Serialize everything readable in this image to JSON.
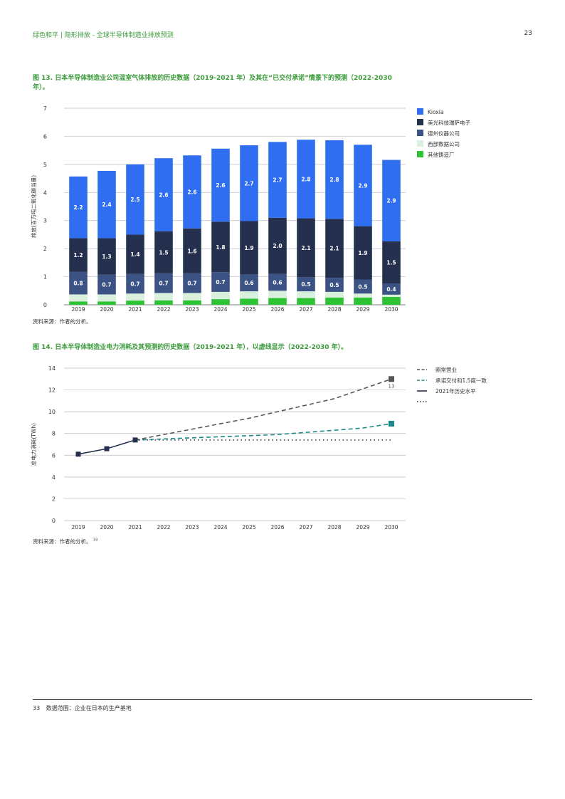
{
  "header": {
    "left": "绿色和平 | 隐形排放 - 全球半导体制造业排放预测",
    "page": "23"
  },
  "fig13": {
    "title": "图 13. 日本半导体制造业公司温室气体排放的历史数据（2019-2021 年）及其在“已交付承诺”情景下的预测（2022-2030 年）。",
    "source": "资料来源：作者的分析。"
  },
  "fig14": {
    "title": "图 14. 日本半导体制造业电力消耗及其预测的历史数据（2019-2021 年），以虚线显示（2022-2030 年）。",
    "source": "资料来源：作者的分析。",
    "source_sup": "33"
  },
  "footer": {
    "num": "33",
    "text": "数据范围：企业在日本的生产基地"
  },
  "chart_data": [
    {
      "type": "bar",
      "stacked": true,
      "ylabel": "排放(百万吨二氧化碳当量)",
      "ylim": [
        0,
        7
      ],
      "yticks": [
        0,
        1,
        2,
        3,
        4,
        5,
        6,
        7
      ],
      "categories": [
        "2019",
        "2020",
        "2021",
        "2022",
        "2023",
        "2024",
        "2025",
        "2026",
        "2027",
        "2028",
        "2029",
        "2030"
      ],
      "legend_position": "right",
      "series": [
        {
          "name": "其他铸造厂",
          "color": "#2ec235",
          "values": [
            0.12,
            0.12,
            0.15,
            0.16,
            0.16,
            0.2,
            0.22,
            0.24,
            0.24,
            0.26,
            0.26,
            0.28
          ]
        },
        {
          "name": "西部数据公司",
          "color": "#d8f0dc",
          "values": [
            0.25,
            0.25,
            0.25,
            0.26,
            0.26,
            0.26,
            0.26,
            0.26,
            0.24,
            0.2,
            0.14,
            0.08
          ]
        },
        {
          "name": "德州仪器公司",
          "color": "#3b5285",
          "values": [
            0.8,
            0.7,
            0.7,
            0.7,
            0.7,
            0.7,
            0.6,
            0.6,
            0.5,
            0.5,
            0.5,
            0.4
          ],
          "labels": [
            "0.8",
            "0.7",
            "0.7",
            "0.7",
            "0.7",
            "0.7",
            "0.6",
            "0.6",
            "0.5",
            "0.5",
            "0.5",
            "0.4"
          ]
        },
        {
          "name": "美光科技瑞萨电子",
          "color": "#25304f",
          "values": [
            1.2,
            1.3,
            1.4,
            1.5,
            1.6,
            1.8,
            1.9,
            2.0,
            2.1,
            2.1,
            1.9,
            1.5
          ],
          "labels": [
            "1.2",
            "1.3",
            "1.4",
            "1.5",
            "1.6",
            "1.8",
            "1.9",
            "2.0",
            "2.1",
            "2.1",
            "1.9",
            "1.5"
          ]
        },
        {
          "name": "Kioxia",
          "color": "#2f6ef0",
          "values": [
            2.2,
            2.4,
            2.5,
            2.6,
            2.6,
            2.6,
            2.7,
            2.7,
            2.8,
            2.8,
            2.9,
            2.9
          ],
          "labels": [
            "2.2",
            "2.4",
            "2.5",
            "2.6",
            "2.6",
            "2.6",
            "2.7",
            "2.7",
            "2.8",
            "2.8",
            "2.9",
            "2.9"
          ]
        }
      ]
    },
    {
      "type": "line",
      "ylabel": "总电力消耗(TWh)",
      "ylim": [
        0,
        14
      ],
      "yticks": [
        0,
        2,
        4,
        6,
        8,
        10,
        12,
        14
      ],
      "categories": [
        "2019",
        "2020",
        "2021",
        "2022",
        "2023",
        "2024",
        "2025",
        "2026",
        "2027",
        "2028",
        "2029",
        "2030"
      ],
      "legend_position": "right",
      "series": [
        {
          "name": "照常营业",
          "color": "#555555",
          "style": "dashed",
          "values": [
            null,
            null,
            7.4,
            7.9,
            8.4,
            8.9,
            9.4,
            10.0,
            10.6,
            11.2,
            12.1,
            13.0
          ],
          "end_label": "13"
        },
        {
          "name": "承诺交付和1.5度一致",
          "color": "#1b8a86",
          "style": "dashed",
          "values": [
            null,
            null,
            7.4,
            7.5,
            7.6,
            7.7,
            7.8,
            7.9,
            8.1,
            8.3,
            8.5,
            8.9
          ]
        },
        {
          "name": "2021年历史水平",
          "color": "#25304f",
          "style": "solid",
          "values": [
            6.1,
            6.6,
            7.4,
            null,
            null,
            null,
            null,
            null,
            null,
            null,
            null,
            null
          ]
        },
        {
          "name": "",
          "color": "#25304f",
          "style": "dotted",
          "values": [
            null,
            null,
            7.4,
            7.4,
            7.4,
            7.4,
            7.4,
            7.4,
            7.4,
            7.4,
            7.4,
            7.4
          ]
        }
      ]
    }
  ]
}
